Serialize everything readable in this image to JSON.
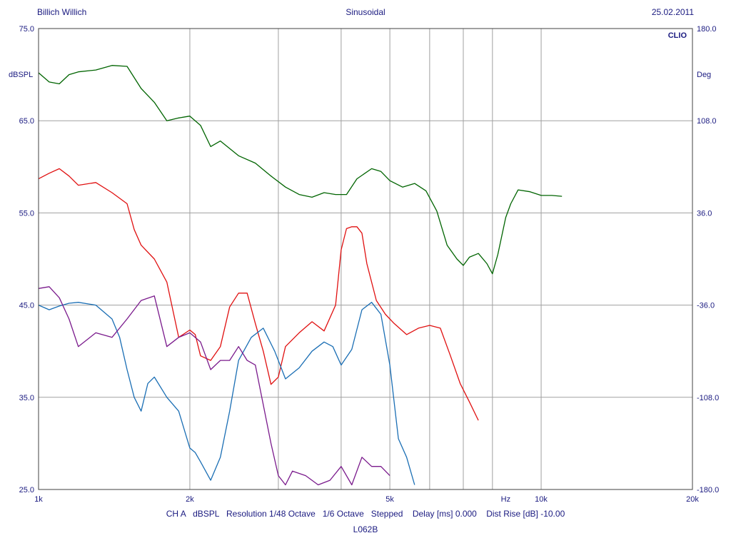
{
  "header": {
    "left": "Billich Willich",
    "center": "Sinusoidal",
    "right": "25.02.2011"
  },
  "footer": {
    "line1": "CH A   dBSPL   Resolution 1/48 Octave   1/6 Octave   Stepped    Delay [ms] 0.000    Dist Rise [dB] -10.00",
    "line2": "L062B"
  },
  "chart_data": {
    "type": "line",
    "brand": "CLIO",
    "xscale": "log",
    "xlim": [
      1000,
      20000
    ],
    "x_ticks": [
      {
        "value": 1000,
        "label": "1k"
      },
      {
        "value": 2000,
        "label": "2k"
      },
      {
        "value": 5000,
        "label": "5k"
      },
      {
        "value": 8500,
        "label": "Hz"
      },
      {
        "value": 10000,
        "label": "10k"
      },
      {
        "value": 20000,
        "label": "20k"
      }
    ],
    "x_gridlines": [
      2000,
      3000,
      4000,
      5000,
      6000,
      7000,
      8000,
      10000
    ],
    "ylabel_left": "dBSPL",
    "ylim_left": [
      25.0,
      75.0
    ],
    "y_ticks_left": [
      "25.0",
      "35.0",
      "45.0",
      "55.0",
      "65.0",
      "75.0"
    ],
    "ylabel_right": "Deg",
    "ylim_right": [
      -180.0,
      180.0
    ],
    "y_ticks_right": [
      "-180.0",
      "-108.0",
      "-36.0",
      "36.0",
      "108.0",
      "180.0"
    ],
    "grid": true,
    "colors": {
      "green": "#006400",
      "red": "#e01010",
      "blue": "#1a6eb4",
      "purple": "#7a1a8c",
      "grid": "#a0a0a0",
      "text": "#1a1a80"
    },
    "series": [
      {
        "color": "green",
        "x": [
          1000,
          1050,
          1100,
          1150,
          1200,
          1300,
          1400,
          1500,
          1600,
          1700,
          1800,
          1900,
          2000,
          2100,
          2200,
          2300,
          2500,
          2700,
          2900,
          3100,
          3300,
          3500,
          3700,
          3900,
          4100,
          4300,
          4600,
          4800,
          5000,
          5300,
          5600,
          5900,
          6200,
          6500,
          6800,
          7000,
          7200,
          7500,
          7800,
          8000,
          8200,
          8500,
          8700,
          9000,
          9500,
          10000,
          10500,
          11000
        ],
        "y": [
          70.2,
          69.2,
          69.0,
          70.0,
          70.3,
          70.5,
          71.0,
          70.9,
          68.5,
          67.0,
          65.0,
          65.3,
          65.5,
          64.5,
          62.2,
          62.8,
          61.2,
          60.4,
          59.0,
          57.8,
          57.0,
          56.7,
          57.2,
          57.0,
          57.0,
          58.7,
          59.8,
          59.5,
          58.5,
          57.8,
          58.2,
          57.4,
          55.2,
          51.5,
          50.0,
          49.3,
          50.2,
          50.6,
          49.5,
          48.4,
          50.5,
          54.5,
          56.0,
          57.5,
          57.3,
          56.9,
          56.9,
          56.8
        ]
      },
      {
        "color": "red",
        "x": [
          1000,
          1050,
          1100,
          1150,
          1200,
          1300,
          1400,
          1500,
          1550,
          1600,
          1700,
          1800,
          1900,
          2000,
          2050,
          2100,
          2200,
          2300,
          2400,
          2500,
          2600,
          2700,
          2800,
          2900,
          3000,
          3100,
          3300,
          3500,
          3700,
          3900,
          4000,
          4100,
          4200,
          4300,
          4400,
          4500,
          4700,
          4900,
          5100,
          5400,
          5700,
          6000,
          6300,
          6600,
          6900,
          7200,
          7500
        ],
        "y": [
          58.7,
          59.3,
          59.8,
          59.0,
          58.0,
          58.3,
          57.2,
          56.0,
          53.2,
          51.5,
          50.0,
          47.5,
          41.5,
          42.3,
          41.8,
          39.5,
          39.0,
          40.5,
          44.8,
          46.3,
          46.3,
          43.0,
          40.0,
          36.4,
          37.2,
          40.5,
          42.0,
          43.2,
          42.2,
          45.0,
          51.0,
          53.3,
          53.5,
          53.5,
          52.8,
          49.5,
          45.5,
          44.0,
          43.0,
          41.8,
          42.5,
          42.8,
          42.5,
          39.5,
          36.5,
          34.5,
          32.5
        ]
      },
      {
        "color": "blue",
        "x": [
          1000,
          1050,
          1100,
          1150,
          1200,
          1300,
          1400,
          1450,
          1500,
          1550,
          1600,
          1650,
          1700,
          1800,
          1900,
          2000,
          2050,
          2100,
          2200,
          2300,
          2400,
          2500,
          2650,
          2800,
          2950,
          3100,
          3300,
          3500,
          3700,
          3850,
          4000,
          4200,
          4400,
          4600,
          4800,
          5000,
          5200,
          5400,
          5600
        ],
        "y": [
          45.0,
          44.5,
          44.9,
          45.2,
          45.3,
          45.0,
          43.5,
          41.5,
          38.0,
          35.0,
          33.5,
          36.5,
          37.2,
          35.0,
          33.5,
          29.5,
          29.0,
          28.0,
          26.0,
          28.5,
          33.5,
          39.0,
          41.5,
          42.5,
          40.0,
          37.0,
          38.2,
          40.0,
          41.0,
          40.5,
          38.5,
          40.2,
          44.5,
          45.3,
          44.0,
          38.5,
          30.5,
          28.5,
          25.5
        ]
      },
      {
        "color": "purple",
        "x": [
          1000,
          1050,
          1100,
          1150,
          1200,
          1300,
          1400,
          1500,
          1600,
          1700,
          1800,
          1900,
          2000,
          2100,
          2200,
          2300,
          2400,
          2500,
          2600,
          2700,
          2900,
          3000,
          3100,
          3200,
          3400,
          3600,
          3800,
          4000,
          4200,
          4400,
          4600,
          4800,
          5000
        ],
        "y": [
          46.8,
          47.0,
          45.8,
          43.5,
          40.5,
          42.0,
          41.5,
          43.5,
          45.5,
          46.0,
          40.5,
          41.5,
          42.0,
          41.0,
          38.0,
          39.0,
          39.0,
          40.5,
          39.0,
          38.5,
          30.0,
          26.5,
          25.5,
          27.0,
          26.5,
          25.5,
          26.0,
          27.5,
          25.5,
          28.5,
          27.5,
          27.5,
          26.5
        ]
      }
    ]
  }
}
